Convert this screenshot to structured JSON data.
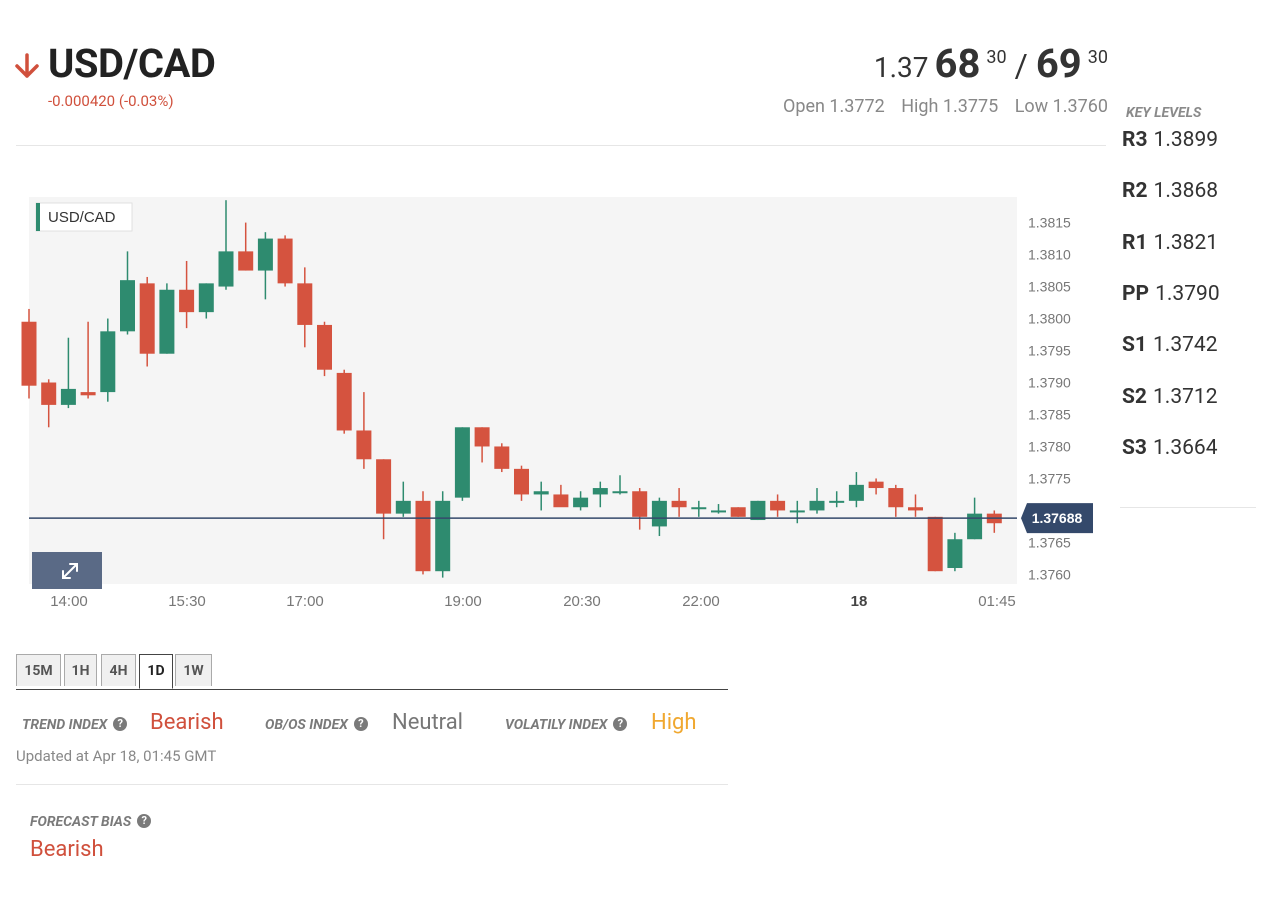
{
  "header": {
    "pair": "USD/CAD",
    "direction_icon": "arrow-down-icon",
    "change": "-0.000420 (-0.03%)",
    "bid": {
      "prefix": "1.37",
      "big": "68",
      "sup": "30"
    },
    "slash": "/",
    "ask": {
      "big": "69",
      "sup": "30"
    },
    "open": "Open 1.3772",
    "high": "High 1.3775",
    "low": "Low 1.3760"
  },
  "key_levels": {
    "title": "KEY LEVELS",
    "levels": [
      {
        "name": "R3",
        "value": "1.3899"
      },
      {
        "name": "R2",
        "value": "1.3868"
      },
      {
        "name": "R1",
        "value": "1.3821"
      },
      {
        "name": "PP",
        "value": "1.3790"
      },
      {
        "name": "S1",
        "value": "1.3742"
      },
      {
        "name": "S2",
        "value": "1.3712"
      },
      {
        "name": "S3",
        "value": "1.3664"
      }
    ]
  },
  "chart_data": {
    "type": "candlestick",
    "legend_label": "USD/CAD",
    "ylim": [
      1.37585,
      1.3819
    ],
    "y_ticks": [
      "1.3815",
      "1.3810",
      "1.3805",
      "1.3800",
      "1.3795",
      "1.3790",
      "1.3785",
      "1.3780",
      "1.3775",
      "1.3770",
      "1.3765",
      "1.3760"
    ],
    "x_ticks": [
      {
        "label": "14:00",
        "bold": false
      },
      {
        "label": "15:30",
        "bold": false
      },
      {
        "label": "17:00",
        "bold": false
      },
      {
        "label": "19:00",
        "bold": false
      },
      {
        "label": "20:30",
        "bold": false
      },
      {
        "label": "22:00",
        "bold": false
      },
      {
        "label": "18",
        "bold": true
      },
      {
        "label": "01:45",
        "bold": false
      }
    ],
    "current_price": "1.37688",
    "current_value": 1.37688,
    "colors": {
      "up": "#2e8b6f",
      "down": "#d5533f",
      "bg": "#f5f5f5",
      "line": "#34496b"
    },
    "candles": [
      [
        1.37995,
        1.38015,
        1.37875,
        1.37895
      ],
      [
        1.379,
        1.37905,
        1.3783,
        1.37865
      ],
      [
        1.37865,
        1.3797,
        1.3786,
        1.3789
      ],
      [
        1.37885,
        1.37995,
        1.37875,
        1.3788
      ],
      [
        1.37885,
        1.38,
        1.3787,
        1.3798
      ],
      [
        1.3798,
        1.38105,
        1.37975,
        1.3806
      ],
      [
        1.38055,
        1.38065,
        1.37925,
        1.37945
      ],
      [
        1.37945,
        1.38055,
        1.37945,
        1.38045
      ],
      [
        1.38045,
        1.3809,
        1.37985,
        1.3801
      ],
      [
        1.3801,
        1.38055,
        1.38,
        1.38055
      ],
      [
        1.3805,
        1.38185,
        1.38045,
        1.38105
      ],
      [
        1.38105,
        1.3815,
        1.38075,
        1.38075
      ],
      [
        1.38075,
        1.38135,
        1.3803,
        1.38125
      ],
      [
        1.38125,
        1.3813,
        1.3805,
        1.38055
      ],
      [
        1.38055,
        1.3808,
        1.37955,
        1.3799
      ],
      [
        1.3799,
        1.37995,
        1.3791,
        1.3792
      ],
      [
        1.37915,
        1.3792,
        1.3782,
        1.37825
      ],
      [
        1.37825,
        1.37885,
        1.37765,
        1.3778
      ],
      [
        1.3778,
        1.3778,
        1.37655,
        1.37695
      ],
      [
        1.37695,
        1.37745,
        1.3769,
        1.37715
      ],
      [
        1.37715,
        1.3773,
        1.376,
        1.37605
      ],
      [
        1.37605,
        1.3773,
        1.37595,
        1.37715
      ],
      [
        1.3772,
        1.3783,
        1.37715,
        1.3783
      ],
      [
        1.3783,
        1.3783,
        1.37775,
        1.378
      ],
      [
        1.378,
        1.37805,
        1.3776,
        1.37765
      ],
      [
        1.37765,
        1.3777,
        1.37715,
        1.37725
      ],
      [
        1.37725,
        1.37745,
        1.377,
        1.3773
      ],
      [
        1.37725,
        1.3774,
        1.3771,
        1.37705
      ],
      [
        1.37705,
        1.3773,
        1.377,
        1.3772
      ],
      [
        1.37725,
        1.37745,
        1.37705,
        1.37735
      ],
      [
        1.3773,
        1.37755,
        1.37725,
        1.3773
      ],
      [
        1.3773,
        1.37735,
        1.3767,
        1.3769
      ],
      [
        1.37675,
        1.3772,
        1.3766,
        1.37715
      ],
      [
        1.37715,
        1.37735,
        1.3769,
        1.37705
      ],
      [
        1.37705,
        1.37715,
        1.3769,
        1.37705
      ],
      [
        1.377,
        1.3771,
        1.37695,
        1.377
      ],
      [
        1.37705,
        1.37705,
        1.3769,
        1.3769
      ],
      [
        1.37685,
        1.37715,
        1.37685,
        1.37715
      ],
      [
        1.37715,
        1.37725,
        1.3769,
        1.377
      ],
      [
        1.377,
        1.37715,
        1.3768,
        1.377
      ],
      [
        1.377,
        1.37735,
        1.37695,
        1.37715
      ],
      [
        1.37715,
        1.3773,
        1.37705,
        1.37715
      ],
      [
        1.37715,
        1.3776,
        1.37705,
        1.3774
      ],
      [
        1.37745,
        1.3775,
        1.37725,
        1.37735
      ],
      [
        1.37735,
        1.3774,
        1.3769,
        1.37705
      ],
      [
        1.37705,
        1.37725,
        1.3769,
        1.377
      ],
      [
        1.3769,
        1.3769,
        1.37605,
        1.37605
      ],
      [
        1.3761,
        1.37665,
        1.37605,
        1.37655
      ],
      [
        1.37655,
        1.3772,
        1.37655,
        1.37695
      ],
      [
        1.37695,
        1.377,
        1.37665,
        1.3768
      ]
    ]
  },
  "tabs": [
    {
      "label": "15M",
      "active": false
    },
    {
      "label": "1H",
      "active": false
    },
    {
      "label": "4H",
      "active": false
    },
    {
      "label": "1D",
      "active": true
    },
    {
      "label": "1W",
      "active": false
    }
  ],
  "indexes": {
    "trend_label": "TREND INDEX",
    "trend_value": "Bearish",
    "obos_label": "OB/OS INDEX",
    "obos_value": "Neutral",
    "vol_label": "VOLATILY INDEX",
    "vol_value": "High",
    "help_glyph": "?",
    "colors": {
      "bearish": "#d0503c",
      "neutral": "#777777",
      "high": "#f0a830"
    }
  },
  "updated": "Updated at Apr 18, 01:45 GMT",
  "forecast": {
    "label": "FORECAST BIAS",
    "value": "Bearish"
  }
}
